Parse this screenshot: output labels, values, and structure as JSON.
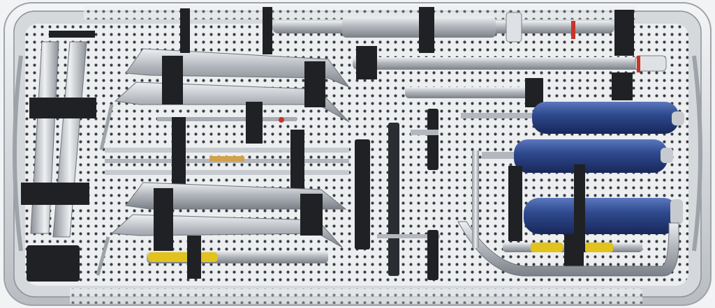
{
  "scene": {
    "subject": "surgical-instrument-tray",
    "colors": {
      "background": "#f2f3f4",
      "tray_steel": "#c9ccd0",
      "tray_rim": "#e6e8ea",
      "perforation": "#3a3d42",
      "bracket": "#1f2124",
      "instrument_steel": "#a9adb3",
      "instrument_highlight": "#e9ebee",
      "handle_blue": "#2f4a8f",
      "handle_blue_dark": "#1f3268",
      "handle_yellow": "#e2c21d",
      "accent_red": "#c8342a"
    },
    "objects": [
      "tray",
      "perforated-base",
      "left-forceps",
      "upper-left-retractors",
      "lower-left-retractors",
      "center-rods",
      "top-long-drill",
      "mid-drill",
      "right-blue-handles",
      "yellow-handle-drivers",
      "curved-bar",
      "vertical-clips"
    ]
  }
}
